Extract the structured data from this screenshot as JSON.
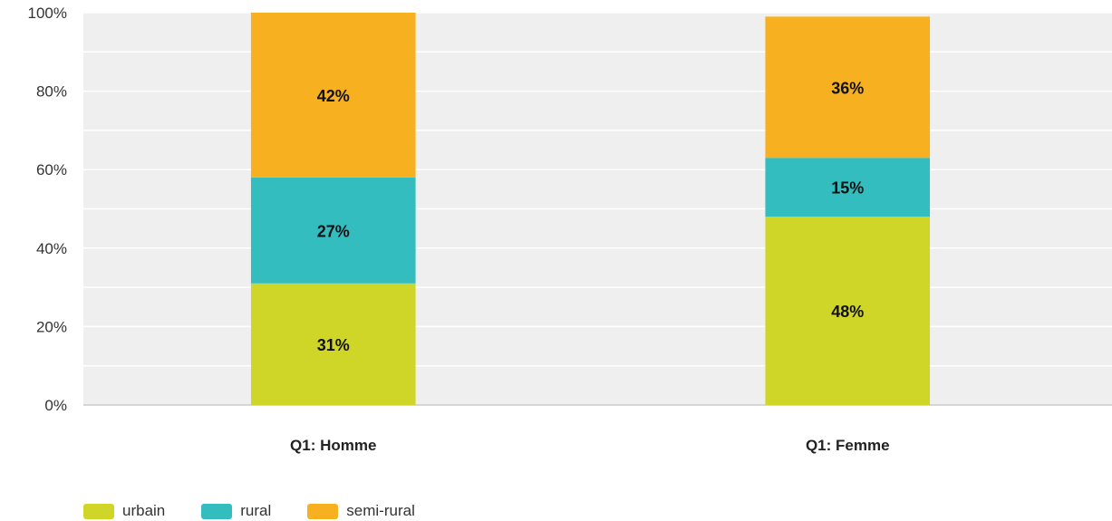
{
  "chart_data": {
    "type": "bar",
    "stacked": true,
    "categories": [
      "Q1: Homme",
      "Q1: Femme"
    ],
    "series": [
      {
        "name": "urbain",
        "values": [
          31,
          48
        ],
        "labels": [
          "31%",
          "48%"
        ],
        "color": "#cfd628"
      },
      {
        "name": "rural",
        "values": [
          27,
          15
        ],
        "labels": [
          "27%",
          "15%"
        ],
        "color": "#33bdbf"
      },
      {
        "name": "semi-rural",
        "values": [
          42,
          36
        ],
        "labels": [
          "42%",
          "36%"
        ],
        "color": "#f7b120"
      }
    ],
    "ylim": [
      0,
      100
    ],
    "yticks": [
      "0%",
      "20%",
      "40%",
      "60%",
      "80%",
      "100%"
    ],
    "grid": true,
    "legend_position": "bottom-left",
    "colors": {
      "plot_background": "#efefef",
      "gridline": "#ffffff",
      "axis": "#cccccc"
    }
  }
}
